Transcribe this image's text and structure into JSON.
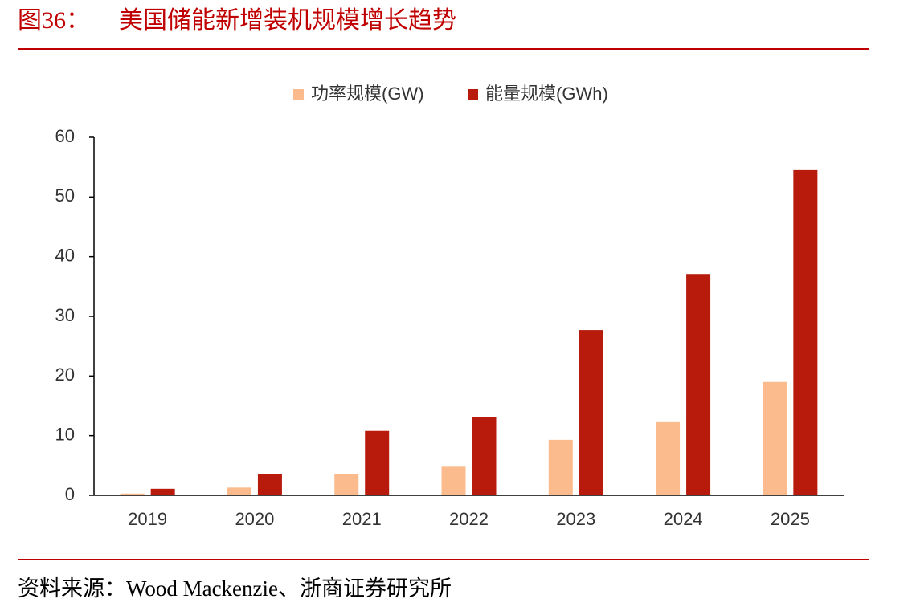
{
  "chart_data": {
    "type": "bar",
    "figure_label": "图36：",
    "title": "美国储能新增装机规模增长趋势",
    "source": "资料来源：Wood Mackenzie、浙商证券研究所",
    "categories": [
      "2019",
      "2020",
      "2021",
      "2022",
      "2023",
      "2024",
      "2025"
    ],
    "series": [
      {
        "name": "功率规模(GW)",
        "color": "#fbbb8d",
        "values": [
          0.3,
          1.3,
          3.6,
          4.8,
          9.3,
          12.4,
          19.0
        ]
      },
      {
        "name": "能量规模(GWh)",
        "color": "#b81b0c",
        "values": [
          1.1,
          3.6,
          10.8,
          13.1,
          27.7,
          37.1,
          54.5
        ]
      }
    ],
    "ylim": [
      0,
      60
    ],
    "yticks": [
      0,
      10,
      20,
      30,
      40,
      50,
      60
    ],
    "grid": false,
    "legend": "top"
  }
}
